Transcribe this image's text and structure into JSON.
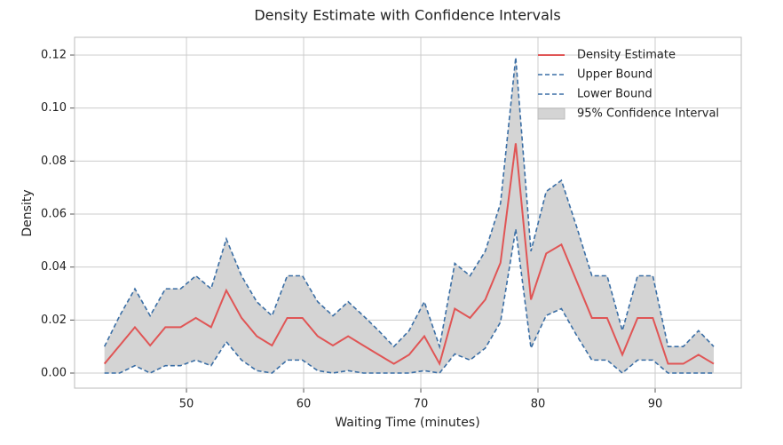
{
  "chart_data": {
    "type": "line",
    "title": "Density Estimate with Confidence Intervals",
    "xlabel": "Waiting Time (minutes)",
    "ylabel": "Density",
    "x": [
      43,
      44.3,
      45.6,
      46.9,
      48.2,
      49.5,
      50.8,
      52.1,
      53.4,
      54.7,
      56,
      57.3,
      58.6,
      59.9,
      61.2,
      62.5,
      63.8,
      65.1,
      66.4,
      67.7,
      69,
      70.3,
      71.6,
      72.9,
      74.2,
      75.5,
      76.8,
      78.1,
      79.4,
      80.7,
      82,
      83.3,
      84.6,
      85.9,
      87.2,
      88.5,
      89.8,
      91.1,
      92.4,
      93.7,
      95
    ],
    "series": [
      {
        "name": "Density Estimate",
        "color": "#e05555",
        "dashed": false,
        "values": [
          0.0035,
          0.0104,
          0.0173,
          0.0104,
          0.0173,
          0.0173,
          0.0208,
          0.0173,
          0.0312,
          0.0208,
          0.0139,
          0.0104,
          0.0208,
          0.0208,
          0.0139,
          0.0104,
          0.0139,
          0.0104,
          0.0069,
          0.0035,
          0.0069,
          0.0139,
          0.0035,
          0.0243,
          0.0208,
          0.0277,
          0.0416,
          0.0867,
          0.0277,
          0.0451,
          0.0485,
          0.0347,
          0.0208,
          0.0208,
          0.0069,
          0.0208,
          0.0208,
          0.0035,
          0.0035,
          0.0069,
          0.0035
        ]
      },
      {
        "name": "Upper Bound",
        "color": "#3a6ea5",
        "dashed": true,
        "values": [
          0.01,
          0.0216,
          0.0318,
          0.0216,
          0.0318,
          0.0318,
          0.0367,
          0.0318,
          0.0506,
          0.0367,
          0.0269,
          0.0216,
          0.0367,
          0.0367,
          0.0269,
          0.0216,
          0.0269,
          0.0216,
          0.016,
          0.01,
          0.016,
          0.0269,
          0.01,
          0.0414,
          0.0367,
          0.046,
          0.064,
          0.1191,
          0.046,
          0.0685,
          0.0727,
          0.0552,
          0.0367,
          0.0367,
          0.016,
          0.0367,
          0.0367,
          0.01,
          0.01,
          0.016,
          0.01
        ]
      },
      {
        "name": "Lower Bound",
        "color": "#3a6ea5",
        "dashed": true,
        "values": [
          0,
          0,
          0.0028,
          0,
          0.0028,
          0.0028,
          0.0049,
          0.0028,
          0.0118,
          0.0049,
          0.0009,
          0,
          0.0049,
          0.0049,
          0.0009,
          0,
          0.0009,
          0,
          0,
          0,
          0,
          0.0009,
          0,
          0.0072,
          0.0049,
          0.0094,
          0.0192,
          0.0543,
          0.0094,
          0.0217,
          0.0243,
          0.0142,
          0.0049,
          0.0049,
          0,
          0.0049,
          0.0049,
          0,
          0,
          0,
          0
        ]
      }
    ],
    "fill_between": {
      "name": "95% Confidence Interval",
      "color": "#d4d4d4"
    },
    "xlim": [
      40.45,
      97.35
    ],
    "ylim": [
      -0.0057,
      0.1267
    ],
    "xticks": [
      50,
      60,
      70,
      80,
      90
    ],
    "yticks": [
      {
        "value": 0,
        "label": "0.00"
      },
      {
        "value": 0.02,
        "label": "0.02"
      },
      {
        "value": 0.04,
        "label": "0.04"
      },
      {
        "value": 0.06,
        "label": "0.06"
      },
      {
        "value": 0.08,
        "label": "0.08"
      },
      {
        "value": 0.1,
        "label": "0.10"
      },
      {
        "value": 0.12,
        "label": "0.12"
      }
    ],
    "grid": true,
    "legend": "upper right"
  }
}
